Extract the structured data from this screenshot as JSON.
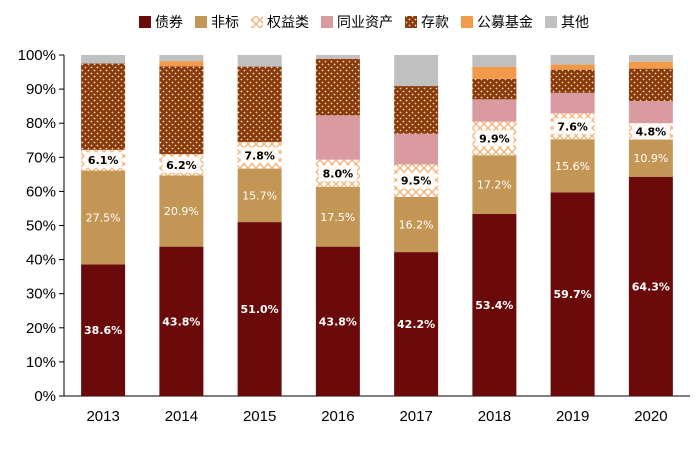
{
  "chart_data": {
    "type": "bar",
    "stacked": true,
    "normalized": true,
    "title": "",
    "xlabel": "",
    "ylabel": "",
    "ylim": [
      0,
      100
    ],
    "ytick_step": 10,
    "ytick_suffix": "%",
    "legend_position": "top",
    "categories": [
      "2013",
      "2014",
      "2015",
      "2016",
      "2017",
      "2018",
      "2019",
      "2020"
    ],
    "series": [
      {
        "name": "债券",
        "color": "#6b0a0a",
        "pattern": "solid",
        "values": [
          38.6,
          43.8,
          51.0,
          43.8,
          42.2,
          53.4,
          59.7,
          64.3
        ],
        "labels": [
          "38.6%",
          "43.8%",
          "51.0%",
          "43.8%",
          "42.2%",
          "53.4%",
          "59.7%",
          "64.3%"
        ],
        "label_color": "#ffffff",
        "label_bold": true
      },
      {
        "name": "非标",
        "color": "#c49655",
        "pattern": "solid",
        "values": [
          27.5,
          20.9,
          15.7,
          17.5,
          16.2,
          17.2,
          15.6,
          10.9
        ],
        "labels": [
          "27.5%",
          "20.9%",
          "15.7%",
          "17.5%",
          "16.2%",
          "17.2%",
          "15.6%",
          "10.9%"
        ],
        "label_color": "#ffffff",
        "label_bold": false
      },
      {
        "name": "权益类",
        "color": "#f6c79a",
        "pattern": "check",
        "values": [
          6.1,
          6.2,
          7.8,
          8.0,
          9.5,
          9.9,
          7.6,
          4.8
        ],
        "labels": [
          "6.1%",
          "6.2%",
          "7.8%",
          "8.0%",
          "9.5%",
          "9.9%",
          "7.6%",
          "4.8%"
        ],
        "label_color": "#000000",
        "label_bold": true
      },
      {
        "name": "同业资产",
        "color": "#d99aa0",
        "pattern": "solid",
        "values": [
          0.0,
          0.0,
          0.0,
          13.0,
          9.0,
          6.5,
          6.0,
          6.5
        ],
        "labels": [],
        "label_color": "#000000",
        "label_bold": false
      },
      {
        "name": "存款",
        "color": "#8a3a0a",
        "pattern": "dots",
        "values": [
          25.3,
          25.8,
          22.1,
          16.6,
          14.0,
          6.0,
          6.8,
          9.5
        ],
        "labels": [],
        "label_color": "#000000",
        "label_bold": false
      },
      {
        "name": "公募基金",
        "color": "#f39a4a",
        "pattern": "solid",
        "values": [
          0.0,
          1.5,
          0.0,
          0.0,
          0.0,
          3.5,
          1.5,
          2.0
        ],
        "labels": [],
        "label_color": "#000000",
        "label_bold": false
      },
      {
        "name": "其他",
        "color": "#c0c0c0",
        "pattern": "solid",
        "values": [
          2.5,
          1.8,
          3.4,
          1.1,
          9.1,
          3.5,
          2.8,
          2.0
        ],
        "labels": [],
        "label_color": "#000000",
        "label_bold": false
      }
    ]
  }
}
